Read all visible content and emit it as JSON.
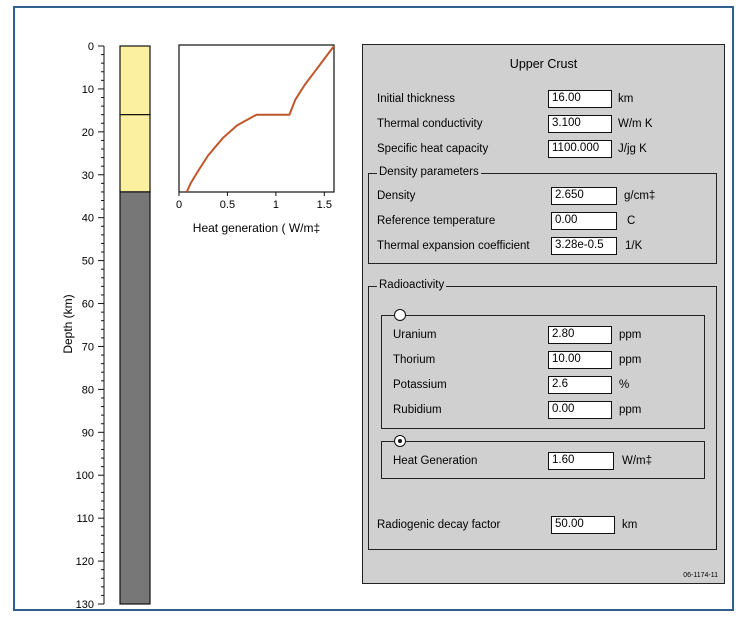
{
  "depth_axis": {
    "label": "Depth (km)",
    "ticks": [
      "0",
      "10",
      "20",
      "30",
      "40",
      "50",
      "60",
      "70",
      "80",
      "90",
      "100",
      "110",
      "120",
      "130"
    ]
  },
  "column": {
    "layers": [
      {
        "top_km": 0,
        "bottom_km": 16,
        "color": "#fbf0a0"
      },
      {
        "top_km": 16,
        "bottom_km": 34,
        "color": "#fbf0a0"
      },
      {
        "top_km": 34,
        "bottom_km": 130,
        "color": "#777777"
      }
    ]
  },
  "chart_data": {
    "type": "line",
    "xlabel": "Heat generation ( W/m‡",
    "ylabel": "",
    "xlim": [
      0,
      1.6
    ],
    "ylim": [
      0,
      35
    ],
    "x_ticks": [
      "0",
      "0.5",
      "1",
      "1.5"
    ],
    "series": [
      {
        "points": [
          [
            1.6,
            0
          ],
          [
            1.5,
            3
          ],
          [
            1.4,
            6
          ],
          [
            1.3,
            9
          ],
          [
            1.2,
            12.5
          ],
          [
            1.14,
            16
          ],
          [
            0.8,
            16
          ],
          [
            0.6,
            18.5
          ],
          [
            0.45,
            21.5
          ],
          [
            0.3,
            25.5
          ],
          [
            0.2,
            29
          ],
          [
            0.12,
            32
          ],
          [
            0.08,
            34
          ]
        ]
      }
    ],
    "color": "#c0562a"
  },
  "panel": {
    "title": "Upper Crust",
    "thickness": {
      "label": "Initial thickness",
      "value": "16.00",
      "unit": "km"
    },
    "conductivity": {
      "label": "Thermal conductivity",
      "value": "3.100",
      "unit": "W/m K"
    },
    "heat_capacity": {
      "label": "Specific heat capacity",
      "value": "1100.000",
      "unit": "J/jg K"
    },
    "density_group": {
      "title": "Density parameters",
      "density": {
        "label": "Density",
        "value": "2.650",
        "unit": "g/cm‡"
      },
      "ref_temp": {
        "label": "Reference temperature",
        "value": "0.00",
        "unit": "C"
      },
      "expansion": {
        "label": "Thermal expansion coefficient",
        "value": "3.28e-0.5",
        "unit": "1/K"
      }
    },
    "radio_group": {
      "title": "Radioactivity",
      "uranium": {
        "label": "Uranium",
        "value": "2.80",
        "unit": "ppm"
      },
      "thorium": {
        "label": "Thorium",
        "value": "10.00",
        "unit": "ppm"
      },
      "potassium": {
        "label": "Potassium",
        "value": "2.6",
        "unit": "%"
      },
      "rubidium": {
        "label": "Rubidium",
        "value": "0.00",
        "unit": "ppm"
      },
      "heat_gen": {
        "label": "Heat Generation",
        "value": "1.60",
        "unit": "W/m‡"
      },
      "selected_option": "heat-generation"
    },
    "decay": {
      "label": "Radiogenic decay factor",
      "value": "50.00",
      "unit": "km"
    },
    "figure_id": "06-1174-11"
  }
}
